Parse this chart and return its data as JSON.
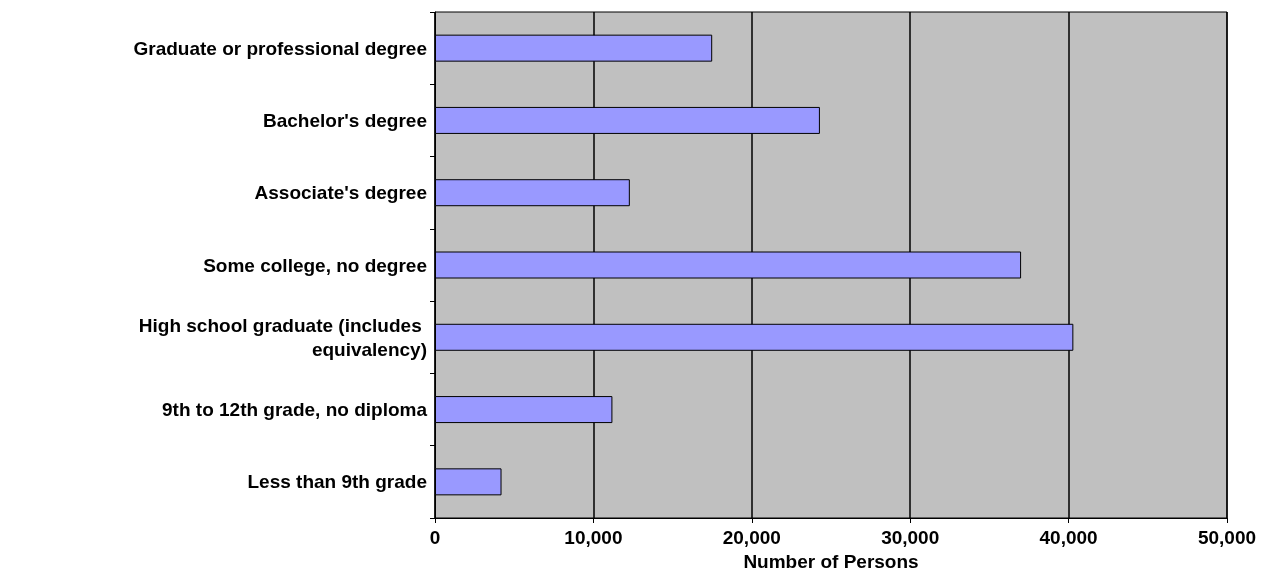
{
  "chart_data": {
    "type": "bar",
    "orientation": "horizontal",
    "xlabel": "Number of Persons",
    "categories": [
      "Graduate or professional degree",
      "Bachelor's degree",
      "Associate's degree",
      "Some college, no degree",
      "High school graduate (includes equivalency)",
      "9th to 12th grade, no diploma",
      "Less than 9th grade"
    ],
    "values": [
      17500,
      24300,
      12300,
      37000,
      40300,
      11200,
      4200
    ],
    "color": "#9999ff",
    "xlim": [
      0,
      50000
    ],
    "xticks": [
      {
        "value": 0,
        "label": "0"
      },
      {
        "value": 10000,
        "label": "10,000"
      },
      {
        "value": 20000,
        "label": "20,000"
      },
      {
        "value": 30000,
        "label": "30,000"
      },
      {
        "value": 40000,
        "label": "40,000"
      },
      {
        "value": 50000,
        "label": "50,000"
      }
    ],
    "grid": "x"
  }
}
